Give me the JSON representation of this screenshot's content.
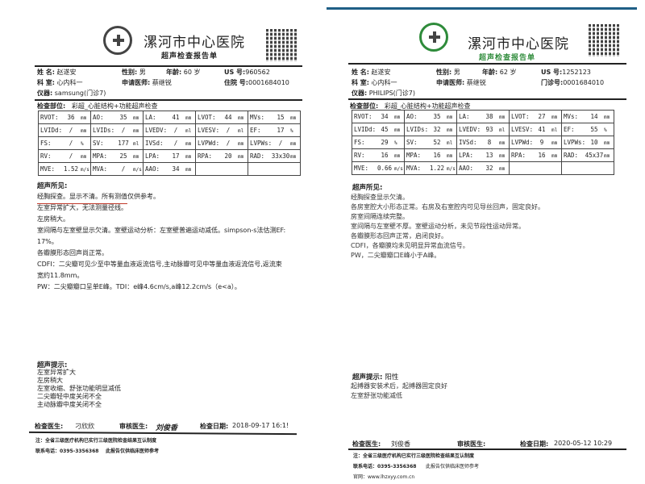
{
  "left": {
    "hospital": "漯河市中心医院",
    "subtitle": "超声检查报告单",
    "name_label": "姓 名:",
    "name": "赵遂安",
    "sex_label": "性别:",
    "sex": "男",
    "age_label": "年龄:",
    "age": "60 岁",
    "us_label": "US 号:",
    "us_no": "960562",
    "dept_label": "科 室:",
    "dept": "心内科一",
    "req_label": "申请医师:",
    "req_doctor": "蔡继锐",
    "id_label": "住院 号:",
    "id_no": "0001684010",
    "device_label": "仪器:",
    "device": "samsung(门诊7)",
    "exam_label": "检查部位:",
    "exam": "彩超_心脏结构+功能超声检查",
    "table": [
      [
        [
          "RVOT:",
          "36",
          "mm"
        ],
        [
          "AO:",
          "35",
          "mm"
        ],
        [
          "LA:",
          "41",
          "mm"
        ],
        [
          "LVOT:",
          "44",
          "mm"
        ],
        [
          "MVs:",
          "15",
          "mm"
        ]
      ],
      [
        [
          "LVIDd:",
          "/",
          "mm"
        ],
        [
          "LVIDs:",
          "/",
          "mm"
        ],
        [
          "LVEDV:",
          "/",
          "ml"
        ],
        [
          "LVESV:",
          "/",
          "ml"
        ],
        [
          "EF:",
          "17",
          "%"
        ]
      ],
      [
        [
          "FS:",
          "/",
          "%"
        ],
        [
          "SV:",
          "177",
          "ml"
        ],
        [
          "IVSd:",
          "/",
          "mm"
        ],
        [
          "LVPWd:",
          "/",
          "mm"
        ],
        [
          "LVPWs:",
          "/",
          "mm"
        ]
      ],
      [
        [
          "RV:",
          "/",
          "mm"
        ],
        [
          "MPA:",
          "25",
          "mm"
        ],
        [
          "LPA:",
          "17",
          "mm"
        ],
        [
          "RPA:",
          "20",
          "mm"
        ],
        [
          "RAD:",
          "33x30",
          "mm"
        ]
      ],
      [
        [
          "MVE:",
          "1.52",
          "m/s"
        ],
        [
          "MVA:",
          "/",
          "m/s"
        ],
        [
          "AAO:",
          "34",
          "mm"
        ],
        [
          "",
          "",
          ""
        ],
        [
          "",
          "",
          ""
        ]
      ]
    ],
    "findings_label": "超声所见:",
    "findings": [
      "经胸探查。显示不清。所有测值仅供参考。",
      "左室异常扩大，无法测量径线。",
      "左房稍大。",
      "室间隔与左室壁显示欠清。室壁运动分析：左室壁普遍运动减低。simpson-s法估测EF:",
      "17%。",
      "各瓣膜形态回声尚正常。",
      "CDFI：二尖瓣可见少至中等量血液返流信号,主动脉瓣可见中等量血液返流信号,返流束",
      "宽约11.8mm。",
      "PW：二尖瓣瓣口呈单E峰。TDI：e峰4.6cm/s,a峰12.2cm/s（e<a）。"
    ],
    "conclusion_label": "超声提示:",
    "conclusion": [
      "左室异常扩大",
      "左房稍大",
      "左室收缩、舒张功能明显减低",
      "二尖瓣轻中度关闭不全",
      "主动脉瓣中度关闭不全"
    ],
    "doctor_label": "检查医生:",
    "doctor": "刁欣欣",
    "reviewer_label": "审核医生:",
    "reviewer": "刘俊香",
    "date_label": "检查日期:",
    "date": "2018-09-17 16:1!",
    "note1": "注：全省三级医疗机构已实行三级医院检查结果互认制度",
    "phone": "联系电话：0395-3356368",
    "note2": "此报告仅供临床医师参考",
    "accent": "#c0392b"
  },
  "right": {
    "hospital": "漯河市中心医院",
    "subtitle": "超声检查报告单",
    "name_label": "姓 名:",
    "name": "赵遂安",
    "sex_label": "性别:",
    "sex": "男",
    "age_label": "年龄:",
    "age": "62 岁",
    "us_label": "US 号:",
    "us_no": "1252123",
    "dept_label": "科 室:",
    "dept": "心内科一",
    "req_label": "申请医师:",
    "req_doctor": "蔡继锐",
    "id_label": "门诊号:",
    "id_no": "0001684010",
    "device_label": "仪器:",
    "device": "PHILIPS(门诊7)",
    "exam_label": "检查部位:",
    "exam": "彩超_心脏结构+功能超声检查",
    "table": [
      [
        [
          "RVOT:",
          "34",
          "mm"
        ],
        [
          "AO:",
          "35",
          "mm"
        ],
        [
          "LA:",
          "38",
          "mm"
        ],
        [
          "LVOT:",
          "27",
          "mm"
        ],
        [
          "MVs:",
          "14",
          "mm"
        ]
      ],
      [
        [
          "LVIDd:",
          "45",
          "mm"
        ],
        [
          "LVIDs:",
          "32",
          "mm"
        ],
        [
          "LVEDV:",
          "93",
          "ml"
        ],
        [
          "LVESV:",
          "41",
          "ml"
        ],
        [
          "EF:",
          "55",
          "%"
        ]
      ],
      [
        [
          "FS:",
          "29",
          "%"
        ],
        [
          "SV:",
          "52",
          "ml"
        ],
        [
          "IVSd:",
          "8",
          "mm"
        ],
        [
          "LVPWd:",
          "9",
          "mm"
        ],
        [
          "LVPWs:",
          "10",
          "mm"
        ]
      ],
      [
        [
          "RV:",
          "16",
          "mm"
        ],
        [
          "MPA:",
          "16",
          "mm"
        ],
        [
          "LPA:",
          "13",
          "mm"
        ],
        [
          "RPA:",
          "16",
          "mm"
        ],
        [
          "RAD:",
          "45x37",
          "mm"
        ]
      ],
      [
        [
          "MVE:",
          "0.66",
          "m/s"
        ],
        [
          "MVA:",
          "1.22",
          "m/s"
        ],
        [
          "AAO:",
          "32",
          "mm"
        ],
        [
          "",
          "",
          ""
        ],
        [
          "",
          "",
          ""
        ]
      ]
    ],
    "findings_label": "超声所见:",
    "findings": [
      "经胸探查显示欠清。",
      "各房室腔大小形态正常。右房及右室腔内可见导丝回声，固定良好。",
      "房室间隔连续完整。",
      "室间隔与左室壁不厚。室壁运动分析，未见节段性运动异常。",
      "各瓣膜形态回声正常，启闭良好。",
      "CDFI，各瓣膜均未见明显异常血流信号。",
      "PW，二尖瓣瓣口E峰小于A峰。"
    ],
    "conclusion_label": "超声提示:",
    "conclusion_tag": "阳性",
    "conclusion": [
      "起搏器安装术后，起搏器固定良好",
      "左室舒张功能减低"
    ],
    "doctor_label": "检查医生:",
    "doctor": "刘俊香",
    "reviewer_label": "审核医生:",
    "reviewer": "",
    "date_label": "检查日期:",
    "date": "2020-05-12 10:29",
    "note1": "注：全省三级医疗机构已实行三级医院检查结果互认制度",
    "phone": "联系电话：0395-3356368",
    "note2": "此报告仅供临床医师参考",
    "website": "官网：www.lhzxyy.com.cn",
    "logo_color": "#2e8b3a",
    "subtitle_color": "#2e8b3a",
    "top_bar_color": "#1f5f86"
  }
}
